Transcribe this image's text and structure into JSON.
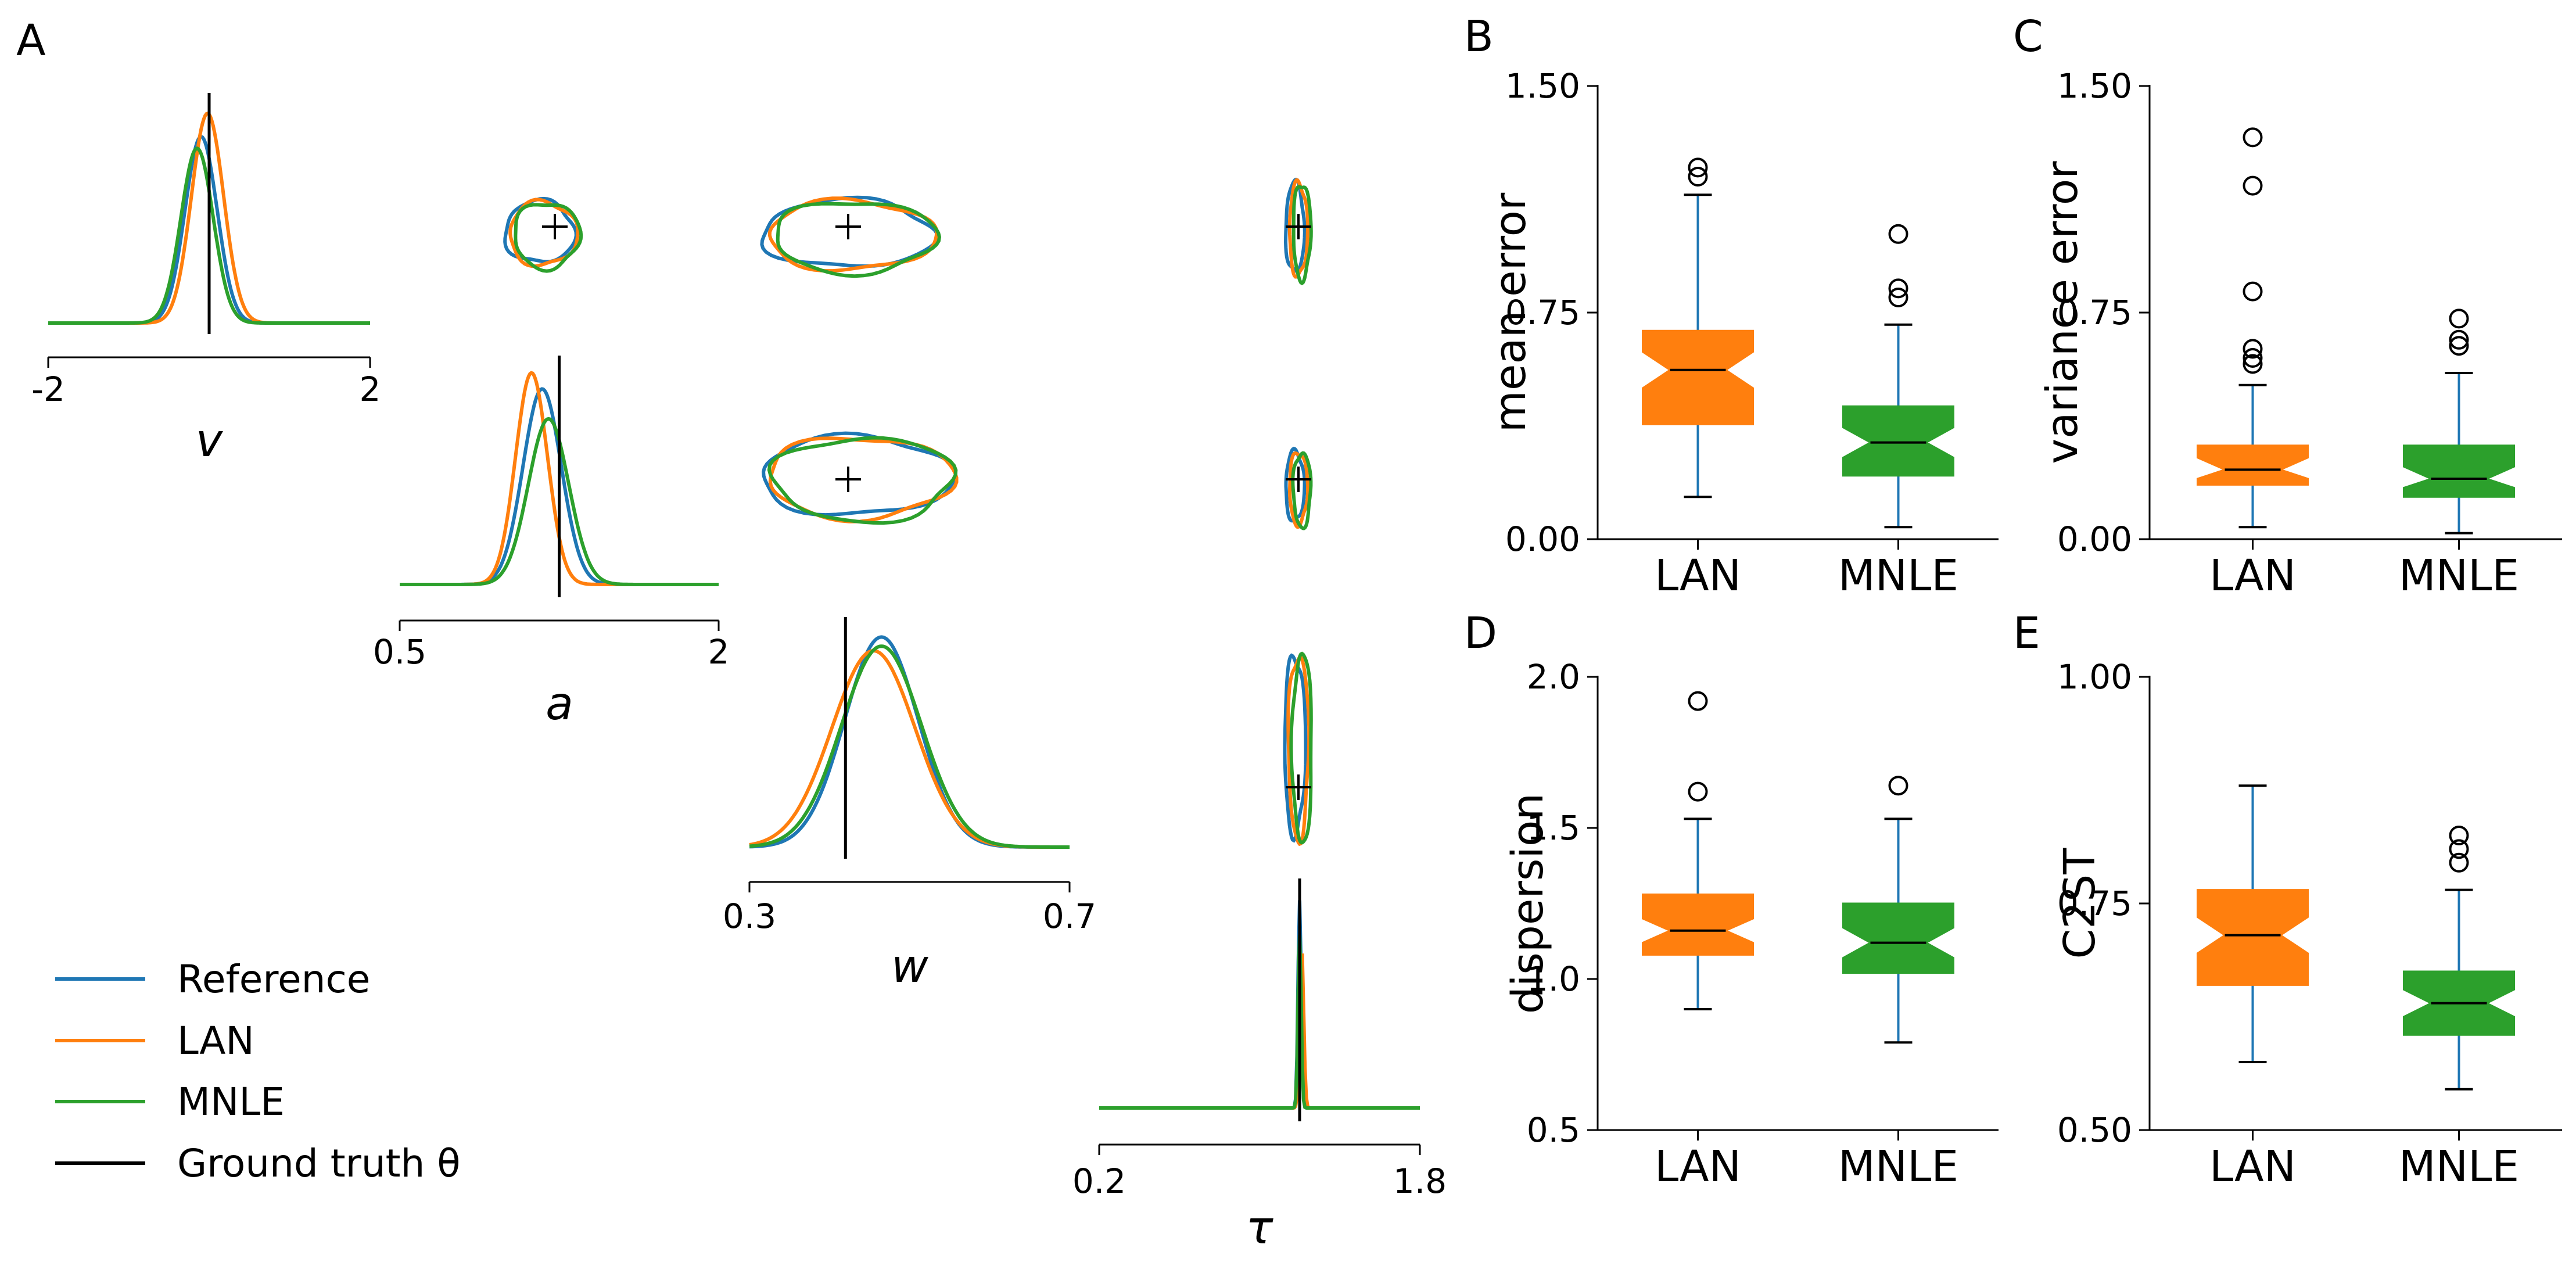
{
  "colors": {
    "reference": "#1f77b4",
    "lan": "#ff7f0e",
    "mnle": "#2ca02c",
    "ground_truth": "#000000"
  },
  "legend": {
    "items": [
      {
        "label": "Reference",
        "color": "#1f77b4"
      },
      {
        "label": "LAN",
        "color": "#ff7f0e"
      },
      {
        "label": "MNLE",
        "color": "#2ca02c"
      },
      {
        "label": "Ground truth θ",
        "color": "#000000"
      }
    ]
  },
  "panel_A": {
    "letter": "A",
    "parameters": [
      {
        "symbol": "v",
        "range": [
          -2,
          2
        ],
        "ticks": [
          "-2",
          "2"
        ],
        "ground_truth": 0.0
      },
      {
        "symbol": "a",
        "range": [
          0.5,
          2
        ],
        "ticks": [
          "0.5",
          "2"
        ],
        "ground_truth": 1.25
      },
      {
        "symbol": "w",
        "range": [
          0.3,
          0.7
        ],
        "ticks": [
          "0.3",
          "0.7"
        ],
        "ground_truth": 0.42
      },
      {
        "symbol": "τ",
        "range": [
          0.2,
          1.8
        ],
        "ticks": [
          "0.2",
          "1.8"
        ],
        "ground_truth": 1.2
      }
    ],
    "marginals": [
      {
        "param": "v",
        "series": [
          {
            "name": "Reference",
            "mean": -0.1,
            "sd": 0.2,
            "peak": 0.8
          },
          {
            "name": "LAN",
            "mean": -0.02,
            "sd": 0.2,
            "peak": 0.9
          },
          {
            "name": "MNLE",
            "mean": -0.15,
            "sd": 0.2,
            "peak": 0.75
          }
        ]
      },
      {
        "param": "a",
        "series": [
          {
            "name": "Reference",
            "mean": 1.17,
            "sd": 0.09,
            "peak": 0.85
          },
          {
            "name": "LAN",
            "mean": 1.12,
            "sd": 0.075,
            "peak": 0.92
          },
          {
            "name": "MNLE",
            "mean": 1.2,
            "sd": 0.095,
            "peak": 0.72
          }
        ]
      },
      {
        "param": "w",
        "series": [
          {
            "name": "Reference",
            "mean": 0.465,
            "sd": 0.046,
            "peak": 0.92
          },
          {
            "name": "LAN",
            "mean": 0.455,
            "sd": 0.052,
            "peak": 0.86
          },
          {
            "name": "MNLE",
            "mean": 0.465,
            "sd": 0.05,
            "peak": 0.88
          }
        ]
      },
      {
        "param": "τ",
        "series": [
          {
            "name": "Reference",
            "mean": 1.2,
            "sd": 0.008,
            "peak": 0.9
          },
          {
            "name": "LAN",
            "mean": 1.21,
            "sd": 0.01,
            "peak": 0.7
          },
          {
            "name": "MNLE",
            "mean": 1.2,
            "sd": 0.008,
            "peak": 0.75
          }
        ]
      }
    ]
  },
  "chart_data": [
    {
      "panel": "B",
      "type": "boxplot",
      "ylabel": "mean error",
      "ylim": [
        0,
        1.5
      ],
      "yticks": [
        "0.00",
        "0.75",
        "1.50"
      ],
      "ytick_values": [
        0,
        0.75,
        1.5
      ],
      "categories": [
        "LAN",
        "MNLE"
      ],
      "boxes": [
        {
          "name": "LAN",
          "color": "#ff7f0e",
          "whislo": 0.14,
          "q1": 0.38,
          "med": 0.56,
          "q3": 0.69,
          "whishi": 1.14,
          "notch": [
            0.5,
            0.62
          ],
          "fliers": [
            1.2,
            1.23
          ]
        },
        {
          "name": "MNLE",
          "color": "#2ca02c",
          "whislo": 0.04,
          "q1": 0.21,
          "med": 0.32,
          "q3": 0.44,
          "whishi": 0.71,
          "notch": [
            0.27,
            0.37
          ],
          "fliers": [
            0.8,
            0.83,
            1.01
          ]
        }
      ]
    },
    {
      "panel": "C",
      "type": "boxplot",
      "ylabel": "variance error",
      "ylim": [
        0,
        1.5
      ],
      "yticks": [
        "0.00",
        "0.75",
        "1.50"
      ],
      "ytick_values": [
        0,
        0.75,
        1.5
      ],
      "categories": [
        "LAN",
        "MNLE"
      ],
      "boxes": [
        {
          "name": "LAN",
          "color": "#ff7f0e",
          "whislo": 0.04,
          "q1": 0.18,
          "med": 0.23,
          "q3": 0.31,
          "whishi": 0.51,
          "notch": [
            0.2,
            0.27
          ],
          "fliers": [
            0.58,
            0.6,
            0.63,
            0.82,
            1.17,
            1.33
          ]
        },
        {
          "name": "MNLE",
          "color": "#2ca02c",
          "whislo": 0.02,
          "q1": 0.14,
          "med": 0.2,
          "q3": 0.31,
          "whishi": 0.55,
          "notch": [
            0.17,
            0.24
          ],
          "fliers": [
            0.64,
            0.66,
            0.73
          ]
        }
      ]
    },
    {
      "panel": "D",
      "type": "boxplot",
      "ylabel": "dispersion",
      "ylim": [
        0.5,
        2.0
      ],
      "yticks": [
        "0.5",
        "1.0",
        "1.5",
        "2.0"
      ],
      "ytick_values": [
        0.5,
        1.0,
        1.5,
        2.0
      ],
      "categories": [
        "LAN",
        "MNLE"
      ],
      "boxes": [
        {
          "name": "LAN",
          "color": "#ff7f0e",
          "whislo": 0.9,
          "q1": 1.08,
          "med": 1.16,
          "q3": 1.28,
          "whishi": 1.53,
          "notch": [
            1.12,
            1.2
          ],
          "fliers": [
            1.62,
            1.92
          ]
        },
        {
          "name": "MNLE",
          "color": "#2ca02c",
          "whislo": 0.79,
          "q1": 1.02,
          "med": 1.12,
          "q3": 1.25,
          "whishi": 1.53,
          "notch": [
            1.07,
            1.17
          ],
          "fliers": [
            1.64
          ]
        }
      ]
    },
    {
      "panel": "E",
      "type": "boxplot",
      "ylabel": "C2ST",
      "ylim": [
        0.5,
        1.0
      ],
      "yticks": [
        "0.50",
        "0.75",
        "1.00"
      ],
      "ytick_values": [
        0.5,
        0.75,
        1.0
      ],
      "categories": [
        "LAN",
        "MNLE"
      ],
      "boxes": [
        {
          "name": "LAN",
          "color": "#ff7f0e",
          "whislo": 0.575,
          "q1": 0.66,
          "med": 0.715,
          "q3": 0.765,
          "whishi": 0.88,
          "notch": [
            0.695,
            0.735
          ],
          "fliers": []
        },
        {
          "name": "MNLE",
          "color": "#2ca02c",
          "whislo": 0.545,
          "q1": 0.605,
          "med": 0.64,
          "q3": 0.675,
          "whishi": 0.765,
          "notch": [
            0.625,
            0.655
          ],
          "fliers": [
            0.795,
            0.81,
            0.825
          ]
        }
      ]
    }
  ]
}
